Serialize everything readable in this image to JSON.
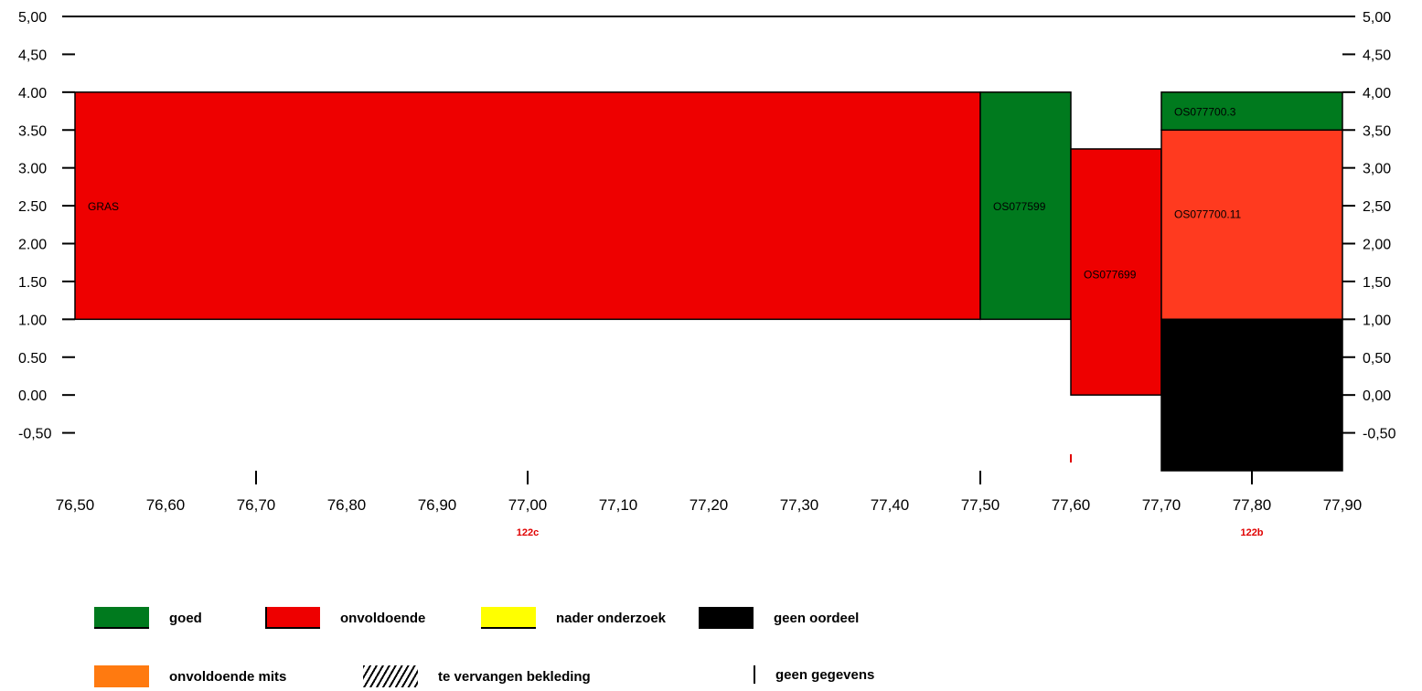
{
  "chart_data": {
    "type": "bar",
    "title": "",
    "xlabel": "",
    "ylabel": "",
    "xlim": [
      76.5,
      77.9
    ],
    "ylim": [
      -1.0,
      5.0
    ],
    "x_ticks": [
      "76,50",
      "76,60",
      "76,70",
      "76,80",
      "76,90",
      "77,00",
      "77,10",
      "77,20",
      "77,30",
      "77,40",
      "77,50",
      "77,60",
      "77,70",
      "77,80",
      "77,90"
    ],
    "y_ticks_left": [
      "5,00",
      "4,50",
      "4.00",
      "3.50",
      "3.00",
      "2.50",
      "2.00",
      "1.50",
      "1.00",
      "0.50",
      "0.00",
      "-0,50"
    ],
    "y_ticks_right": [
      "5,00",
      "4,50",
      "4,00",
      "3,50",
      "3,00",
      "2,50",
      "2,00",
      "1,50",
      "1,00",
      "0,50",
      "0,00",
      "-0,50"
    ],
    "segments": [
      {
        "x0": 76.5,
        "x1": 77.5,
        "y0": 1.0,
        "y1": 4.0,
        "status": "onvoldoende",
        "label": "GRAS",
        "label_y": 2.5
      },
      {
        "x0": 77.5,
        "x1": 77.6,
        "y0": 1.0,
        "y1": 4.0,
        "status": "goed",
        "label": "OS077599",
        "label_y": 2.5
      },
      {
        "x0": 77.6,
        "x1": 77.7,
        "y0": 0.0,
        "y1": 3.25,
        "status": "onvoldoende",
        "label": "OS077699",
        "label_y": 1.6
      },
      {
        "x0": 77.7,
        "x1": 77.9,
        "y0": 3.5,
        "y1": 4.0,
        "status": "goed",
        "label": "OS077700.3",
        "label_y": 3.75
      },
      {
        "x0": 77.7,
        "x1": 77.9,
        "y0": 1.0,
        "y1": 3.5,
        "status": "onvoldoende mits",
        "label": "OS077700.11",
        "label_y": 2.4
      },
      {
        "x0": 77.7,
        "x1": 77.9,
        "y0": -1.0,
        "y1": 1.0,
        "status": "geen oordeel",
        "label": "",
        "label_y": 0
      }
    ],
    "reference_line": {
      "y": 5.0
    },
    "sections": [
      {
        "label": "122c",
        "x": 77.0
      },
      {
        "label": "122b",
        "x": 77.8
      }
    ],
    "section_ticks": [
      76.7,
      77.0,
      77.5,
      77.8
    ],
    "red_tick": 77.6
  },
  "colors": {
    "goed": "#007a1e",
    "onvoldoende": "#ee0000",
    "nader onderzoek": "#ffff00",
    "geen oordeel": "#000000",
    "onvoldoende mits": "#ff3a1f",
    "legend_onvoldoende_mits": "#ff7a10",
    "section_label": "#e00000"
  },
  "legend": {
    "goed": "goed",
    "onvoldoende": "onvoldoende",
    "nader_onderzoek": "nader onderzoek",
    "geen_oordeel": "geen oordeel",
    "onvoldoende_mits": "onvoldoende mits",
    "te_vervangen": "te vervangen bekleding",
    "geen_gegevens": "geen gegevens"
  }
}
